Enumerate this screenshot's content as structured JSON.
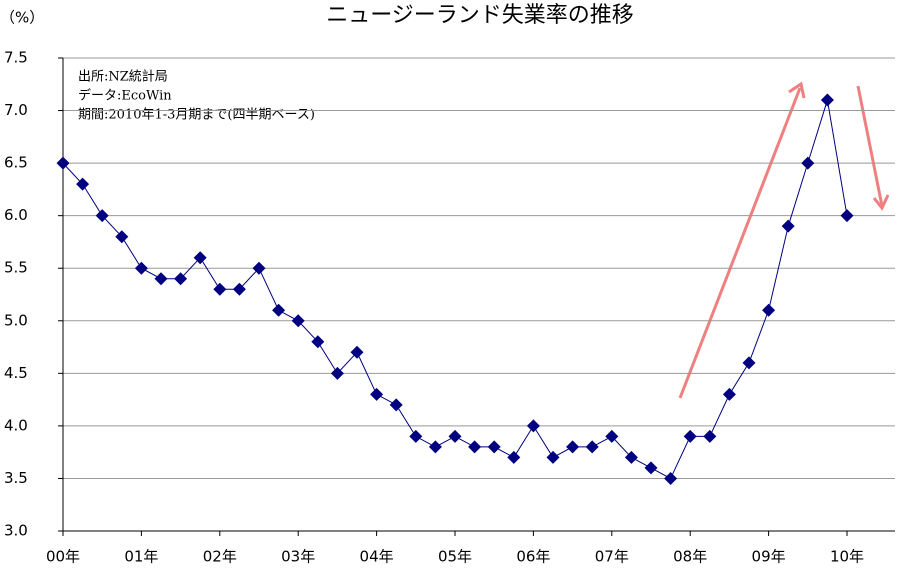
{
  "chart_data": {
    "type": "line",
    "title": "ニュージーランド失業率の推移",
    "y_label": "（%）",
    "annotations": [
      "出所:NZ統計局",
      "データ:EcoWin",
      "期間:2010年1-3月期まで(四半期ベース)"
    ],
    "categories": [
      "00年",
      null,
      null,
      null,
      "01年",
      null,
      null,
      null,
      "02年",
      null,
      null,
      null,
      "03年",
      null,
      null,
      null,
      "04年",
      null,
      null,
      null,
      "05年",
      null,
      null,
      null,
      "06年",
      null,
      null,
      null,
      "07年",
      null,
      null,
      null,
      "08年",
      null,
      null,
      null,
      "09年",
      null,
      null,
      null,
      "10年"
    ],
    "series": [
      {
        "name": "失業率",
        "color": "#000080",
        "values": [
          6.5,
          6.3,
          6.0,
          5.8,
          5.5,
          5.4,
          5.4,
          5.6,
          5.3,
          5.3,
          5.5,
          5.1,
          5.0,
          4.8,
          4.5,
          4.7,
          4.3,
          4.2,
          3.9,
          3.8,
          3.9,
          3.8,
          3.8,
          3.7,
          4.0,
          3.7,
          3.8,
          3.8,
          3.9,
          3.7,
          3.6,
          3.5,
          3.9,
          3.9,
          4.3,
          4.6,
          5.1,
          5.9,
          6.5,
          7.1,
          6.0
        ]
      }
    ],
    "ylim": [
      3.0,
      7.5
    ],
    "yticks": [
      {
        "value": 3,
        "label": "3.0"
      },
      3.5,
      {
        "value": 4,
        "label": "4.0"
      },
      4.5,
      {
        "value": 5,
        "label": "5.0"
      },
      5.5,
      {
        "value": 6,
        "label": "6.0"
      },
      6.5,
      {
        "value": 7,
        "label": "7.0"
      },
      7.5
    ],
    "grid": true
  }
}
